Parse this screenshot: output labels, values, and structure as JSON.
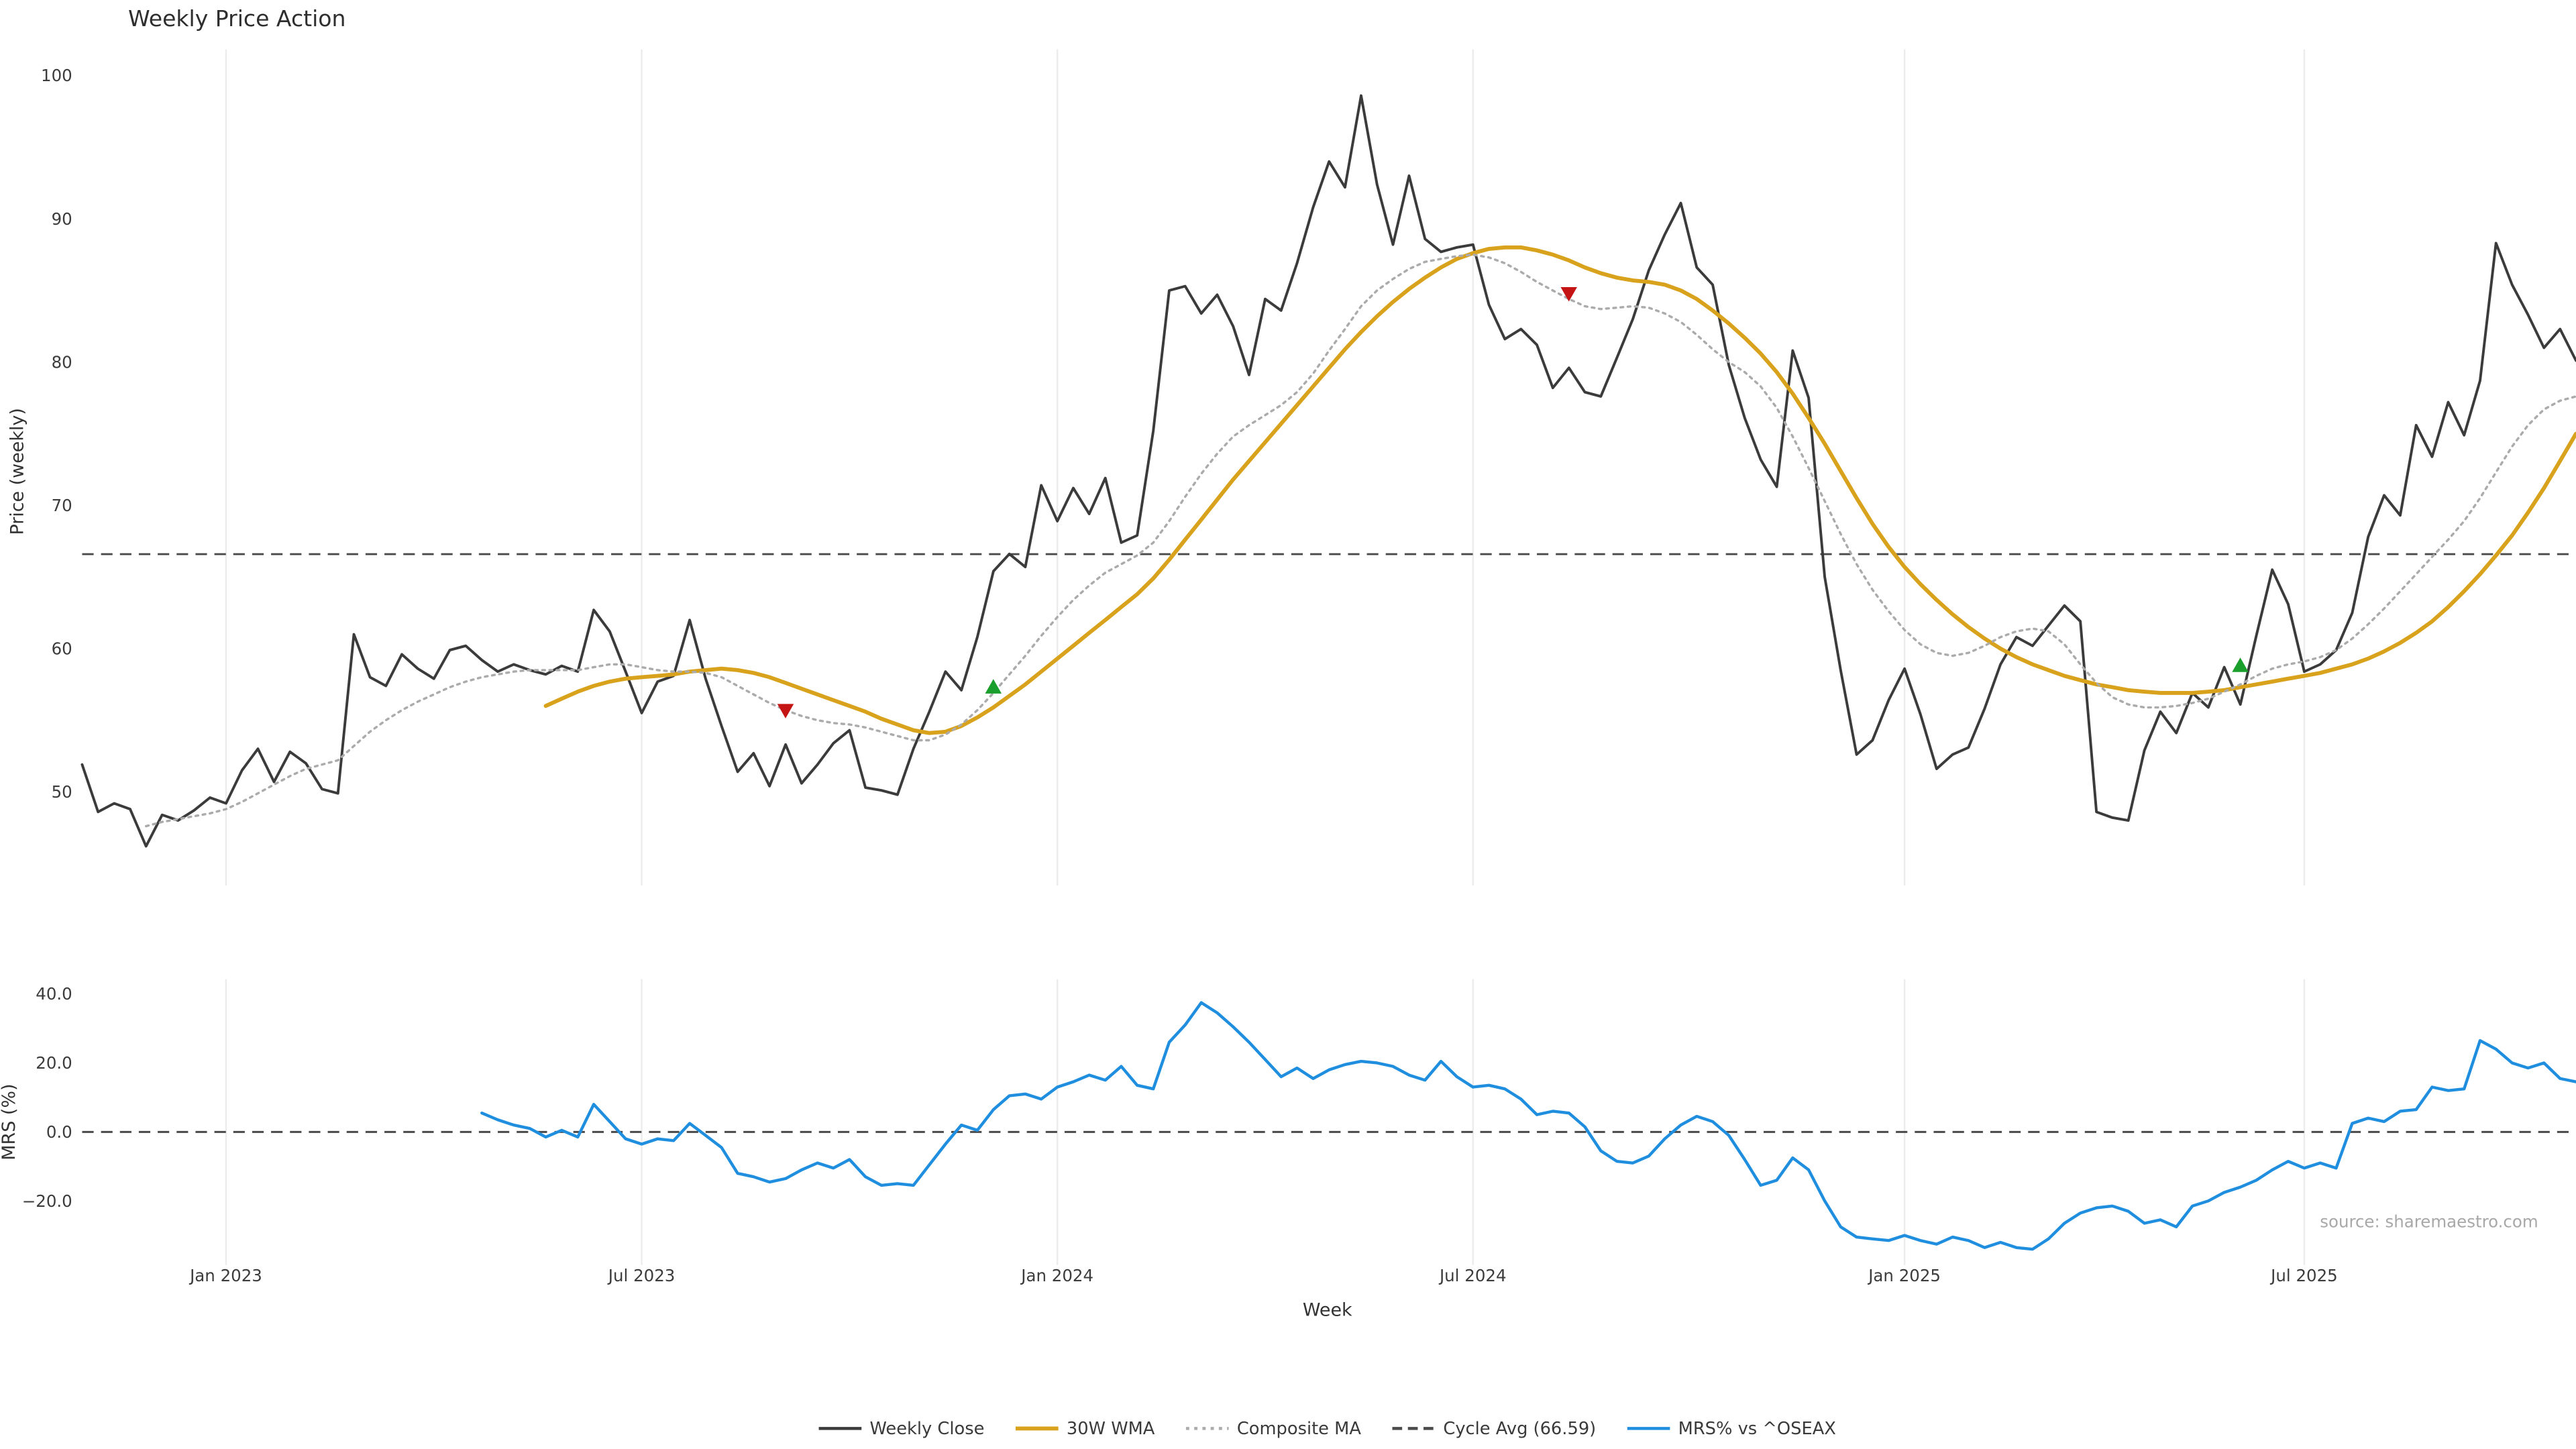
{
  "title": "Weekly Price Action",
  "source_note": "source: sharemaestro.com",
  "legend": {
    "items": [
      {
        "label": "Weekly Close",
        "color": "#3b3b3b",
        "line_style": "solid"
      },
      {
        "label": "30W WMA",
        "color": "#d9a21c",
        "line_style": "solid_thick"
      },
      {
        "label": "Composite MA",
        "color": "#ababab",
        "line_style": "dotted"
      },
      {
        "label": "Cycle Avg (66.59)",
        "color": "#4a4a4a",
        "line_style": "dashed"
      },
      {
        "label": "MRS% vs ^OSEAX",
        "color": "#1f8ede",
        "line_style": "solid"
      }
    ]
  },
  "chart_data": {
    "type": "line",
    "title": "Weekly Price Action",
    "xlabel": "Week",
    "x_unit": "weekly bars, Nov 2022 - Nov 2025, week index 0-156",
    "grid": "vertical-only, light gray",
    "legend_position": "bottom center",
    "x_ticks": [
      {
        "week": 9,
        "label": "Jan 2023"
      },
      {
        "week": 35,
        "label": "Jul 2023"
      },
      {
        "week": 61,
        "label": "Jan 2024"
      },
      {
        "week": 87,
        "label": "Jul 2024"
      },
      {
        "week": 114,
        "label": "Jan 2025"
      },
      {
        "week": 139,
        "label": "Jul 2025"
      }
    ],
    "panels": [
      {
        "id": "price",
        "ylabel": "Price (weekly)",
        "ylim": [
          44,
          102
        ],
        "yticks": [
          {
            "value": 50,
            "label": "50"
          },
          {
            "value": 60,
            "label": "60"
          },
          {
            "value": 70,
            "label": "70"
          },
          {
            "value": 80,
            "label": "80"
          },
          {
            "value": 90,
            "label": "90"
          },
          {
            "value": 100,
            "label": "100"
          }
        ]
      },
      {
        "id": "mrs",
        "ylabel": "MRS (%)",
        "ylim": [
          -40,
          46
        ],
        "yticks": [
          {
            "value": -20,
            "label": "−20.0"
          },
          {
            "value": 0,
            "label": "0.0"
          },
          {
            "value": 20,
            "label": "20.0"
          },
          {
            "value": 40,
            "label": "40.0"
          }
        ]
      }
    ],
    "reference_lines": [
      {
        "panel": "price",
        "value": 66.59,
        "label": "Cycle Avg (66.59)",
        "style": "dashed",
        "color": "#4a4a4a"
      },
      {
        "panel": "mrs",
        "value": 0,
        "label": "zero line",
        "style": "dashed",
        "color": "#4a4a4a"
      }
    ],
    "series": [
      {
        "name": "Weekly Close",
        "panel": "price",
        "color": "#3b3b3b",
        "width": 1.6,
        "line_style": "solid",
        "start_week": 0,
        "values": [
          51.9,
          48.6,
          49.2,
          48.8,
          46.2,
          48.4,
          48.0,
          48.7,
          49.6,
          49.2,
          51.5,
          53.0,
          50.7,
          52.8,
          52.0,
          50.2,
          49.9,
          61.0,
          58.0,
          57.4,
          59.6,
          58.6,
          57.9,
          59.9,
          60.2,
          59.2,
          58.4,
          58.9,
          58.5,
          58.2,
          58.8,
          58.4,
          62.7,
          61.2,
          58.4,
          55.5,
          57.7,
          58.1,
          62.0,
          57.9,
          54.6,
          51.4,
          52.7,
          50.4,
          53.3,
          50.6,
          51.9,
          53.4,
          54.3,
          50.3,
          50.1,
          49.8,
          53.0,
          55.6,
          58.4,
          57.1,
          60.8,
          65.4,
          66.6,
          65.7,
          71.4,
          68.9,
          71.2,
          69.4,
          71.9,
          67.4,
          67.9,
          75.2,
          85.0,
          85.3,
          83.4,
          84.7,
          82.5,
          79.1,
          84.4,
          83.6,
          86.9,
          90.8,
          94.0,
          92.2,
          98.6,
          92.4,
          88.2,
          93.0,
          88.6,
          87.7,
          88.0,
          88.2,
          84.0,
          81.6,
          82.3,
          81.2,
          78.2,
          79.6,
          77.9,
          77.6,
          80.3,
          83.0,
          86.4,
          88.9,
          91.1,
          86.6,
          85.4,
          79.8,
          76.1,
          73.2,
          71.3,
          80.8,
          77.5,
          65.0,
          58.5,
          52.6,
          53.6,
          56.4,
          58.6,
          55.4,
          51.6,
          52.6,
          53.1,
          55.8,
          58.9,
          60.8,
          60.2,
          61.6,
          63.0,
          61.9,
          48.6,
          48.2,
          48.0,
          52.9,
          55.6,
          54.1,
          56.9,
          55.9,
          58.7,
          56.1,
          60.9,
          65.5,
          63.1,
          58.4,
          58.9,
          59.9,
          62.5,
          67.8,
          70.7,
          69.3,
          75.6,
          73.4,
          77.2,
          74.9,
          78.7,
          88.3,
          85.4,
          83.3,
          81.0,
          82.3,
          80.1
        ]
      },
      {
        "name": "30W WMA",
        "panel": "price",
        "color": "#d9a21c",
        "width": 2.4,
        "line_style": "solid",
        "start_week": 29,
        "values": [
          56.0,
          56.5,
          57.0,
          57.4,
          57.7,
          57.9,
          58.0,
          58.1,
          58.2,
          58.4,
          58.5,
          58.6,
          58.5,
          58.3,
          58.0,
          57.6,
          57.2,
          56.8,
          56.4,
          56.0,
          55.6,
          55.1,
          54.7,
          54.3,
          54.1,
          54.2,
          54.6,
          55.2,
          55.9,
          56.7,
          57.5,
          58.4,
          59.3,
          60.2,
          61.1,
          62.0,
          62.9,
          63.8,
          64.9,
          66.2,
          67.6,
          69.0,
          70.4,
          71.8,
          73.1,
          74.4,
          75.7,
          77.0,
          78.3,
          79.6,
          80.9,
          82.1,
          83.2,
          84.2,
          85.1,
          85.9,
          86.6,
          87.2,
          87.6,
          87.9,
          88.0,
          88.0,
          87.8,
          87.5,
          87.1,
          86.6,
          86.2,
          85.9,
          85.7,
          85.6,
          85.4,
          85.0,
          84.4,
          83.6,
          82.7,
          81.7,
          80.6,
          79.3,
          77.8,
          76.1,
          74.3,
          72.4,
          70.5,
          68.7,
          67.1,
          65.7,
          64.5,
          63.4,
          62.4,
          61.5,
          60.7,
          60.0,
          59.4,
          58.9,
          58.5,
          58.1,
          57.8,
          57.5,
          57.3,
          57.1,
          57.0,
          56.9,
          56.9,
          56.9,
          57.0,
          57.1,
          57.3,
          57.5,
          57.7,
          57.9,
          58.1,
          58.3,
          58.6,
          58.9,
          59.3,
          59.8,
          60.4,
          61.1,
          61.9,
          62.9,
          64.0,
          65.2,
          66.5,
          67.9,
          69.5,
          71.2,
          73.1,
          75.0
        ]
      },
      {
        "name": "Composite MA",
        "panel": "price",
        "color": "#ababab",
        "width": 1.4,
        "line_style": "dotted",
        "start_week": 4,
        "values": [
          47.6,
          47.9,
          48.1,
          48.3,
          48.5,
          48.8,
          49.3,
          49.9,
          50.5,
          51.1,
          51.6,
          51.9,
          52.2,
          53.2,
          54.2,
          55.0,
          55.7,
          56.3,
          56.8,
          57.3,
          57.7,
          58.0,
          58.2,
          58.4,
          58.5,
          58.5,
          58.5,
          58.5,
          58.7,
          58.9,
          58.9,
          58.7,
          58.5,
          58.4,
          58.4,
          58.3,
          58.0,
          57.4,
          56.8,
          56.2,
          55.7,
          55.3,
          55.0,
          54.8,
          54.7,
          54.5,
          54.2,
          53.9,
          53.6,
          53.6,
          54.0,
          54.7,
          55.7,
          56.9,
          58.2,
          59.5,
          60.9,
          62.2,
          63.4,
          64.4,
          65.3,
          65.9,
          66.5,
          67.4,
          68.9,
          70.6,
          72.2,
          73.6,
          74.8,
          75.6,
          76.3,
          77.0,
          77.9,
          79.2,
          80.8,
          82.3,
          83.9,
          85.0,
          85.8,
          86.5,
          87.0,
          87.2,
          87.4,
          87.5,
          87.3,
          86.9,
          86.3,
          85.6,
          85.0,
          84.4,
          83.9,
          83.7,
          83.8,
          83.9,
          83.8,
          83.4,
          82.8,
          81.9,
          80.9,
          80.0,
          79.3,
          78.3,
          76.8,
          74.8,
          72.6,
          70.3,
          68.0,
          65.9,
          64.1,
          62.6,
          61.3,
          60.3,
          59.7,
          59.5,
          59.7,
          60.2,
          60.8,
          61.2,
          61.4,
          61.2,
          60.3,
          58.9,
          57.6,
          56.6,
          56.1,
          55.9,
          55.9,
          56.0,
          56.2,
          56.5,
          57.0,
          57.5,
          58.1,
          58.6,
          58.9,
          59.1,
          59.4,
          59.9,
          60.7,
          61.7,
          62.8,
          64.0,
          65.2,
          66.4,
          67.6,
          68.9,
          70.5,
          72.3,
          74.1,
          75.6,
          76.7,
          77.3,
          77.6
        ]
      },
      {
        "name": "MRS% vs ^OSEAX",
        "panel": "mrs",
        "color": "#1f8ede",
        "width": 1.8,
        "line_style": "solid",
        "start_week": 25,
        "values": [
          5.5,
          3.5,
          2.0,
          1.0,
          -1.5,
          0.5,
          -1.5,
          8.0,
          3.0,
          -2.0,
          -3.5,
          -2.0,
          -2.5,
          2.5,
          -1.0,
          -4.5,
          -12.0,
          -13.0,
          -14.5,
          -13.5,
          -11.0,
          -9.0,
          -10.5,
          -8.0,
          -13.0,
          -15.5,
          -15.0,
          -15.5,
          -9.5,
          -3.5,
          2.0,
          0.5,
          6.5,
          10.5,
          11.0,
          9.5,
          13.0,
          14.5,
          16.5,
          15.0,
          19.0,
          13.5,
          12.5,
          26.0,
          31.0,
          37.5,
          34.5,
          30.5,
          26.0,
          21.0,
          16.0,
          18.5,
          15.5,
          18.0,
          19.5,
          20.5,
          20.0,
          19.0,
          16.5,
          15.0,
          20.5,
          16.0,
          13.0,
          13.5,
          12.5,
          9.5,
          5.0,
          6.0,
          5.5,
          1.5,
          -5.5,
          -8.5,
          -9.0,
          -7.0,
          -2.0,
          2.0,
          4.5,
          3.0,
          -1.0,
          -8.0,
          -15.5,
          -14.0,
          -7.5,
          -11.0,
          -20.0,
          -27.5,
          -30.5,
          -31.0,
          -31.5,
          -30.0,
          -31.5,
          -32.5,
          -30.5,
          -31.5,
          -33.5,
          -32.0,
          -33.5,
          -34.0,
          -31.0,
          -26.5,
          -23.5,
          -22.0,
          -21.5,
          -23.0,
          -26.5,
          -25.5,
          -27.5,
          -21.5,
          -20.0,
          -17.5,
          -16.0,
          -14.0,
          -11.0,
          -8.5,
          -10.5,
          -9.0,
          -10.5,
          2.5,
          4.0,
          3.0,
          6.0,
          6.5,
          13.0,
          12.0,
          12.5,
          26.5,
          24.0,
          20.0,
          18.5,
          20.0,
          15.5,
          14.5
        ]
      }
    ],
    "signals": {
      "buy_color": "#1a9e2c",
      "sell_color": "#c41414",
      "buy": [
        {
          "week": 57,
          "price": 57.3
        },
        {
          "week": 135,
          "price": 58.8
        }
      ],
      "sell": [
        {
          "week": 44,
          "price": 55.7
        },
        {
          "week": 93,
          "price": 84.8
        }
      ]
    }
  }
}
